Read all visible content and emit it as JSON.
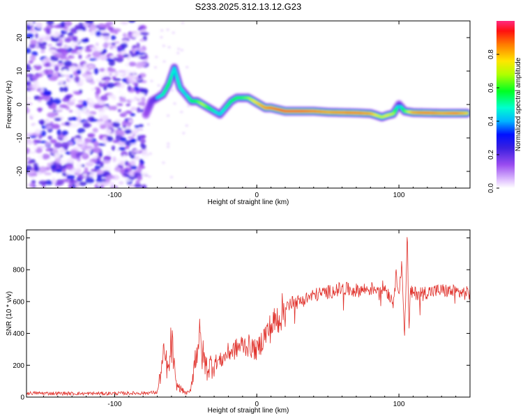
{
  "title": "S233.2025.312.13.12.G23",
  "chart_data": [
    {
      "type": "heatmap",
      "name": "spectrogram",
      "xlabel": "Height of straight line (km)",
      "ylabel": "Frequency (Hz)",
      "xlim": [
        -162,
        150
      ],
      "ylim": [
        -25,
        25
      ],
      "xticks": [
        -100,
        0,
        100
      ],
      "yticks": [
        -20,
        -10,
        0,
        10,
        20
      ],
      "colorbar": {
        "label": "Normalized spectral amplitude",
        "range": [
          0,
          1
        ],
        "ticks": [
          0.0,
          0.2,
          0.4,
          0.6,
          0.8
        ]
      },
      "ridge": {
        "description": "peak frequency trace (Hz) vs height (km)",
        "x": [
          -78,
          -74,
          -70,
          -66,
          -62,
          -58,
          -54,
          -50,
          -46,
          -42,
          -38,
          -34,
          -30,
          -26,
          -22,
          -18,
          -14,
          -10,
          -6,
          -2,
          2,
          6,
          10,
          20,
          30,
          40,
          50,
          60,
          70,
          80,
          84,
          88,
          92,
          96,
          100,
          104,
          110,
          120,
          130,
          140,
          148
        ],
        "y": [
          -3,
          1,
          2,
          3,
          6,
          11,
          5,
          3,
          1,
          1,
          0,
          -1,
          -2,
          -3,
          -1,
          1,
          2,
          2,
          2,
          1,
          0,
          -1,
          -1,
          -2,
          -2,
          -2,
          -2.3,
          -2.4,
          -2.5,
          -2.7,
          -3.2,
          -3.8,
          -3.2,
          -2.8,
          0,
          -2,
          -2.4,
          -2.5,
          -2.6,
          -2.6,
          -2.6
        ],
        "amplitude": [
          0.3,
          0.4,
          0.45,
          0.5,
          0.55,
          0.45,
          0.5,
          0.45,
          0.55,
          0.6,
          0.7,
          0.6,
          0.5,
          0.45,
          0.5,
          0.55,
          0.6,
          0.6,
          0.65,
          0.75,
          0.8,
          0.85,
          0.9,
          0.95,
          0.95,
          0.9,
          0.85,
          0.88,
          0.9,
          0.85,
          0.75,
          0.7,
          0.75,
          0.7,
          0.4,
          0.6,
          0.85,
          0.9,
          0.85,
          0.9,
          0.8
        ]
      },
      "noise_region": {
        "x_range": [
          -162,
          -78
        ],
        "amplitude_range": [
          0.0,
          0.3
        ]
      }
    },
    {
      "type": "line",
      "name": "snr",
      "xlabel": "Height of straight line (km)",
      "ylabel": "SNR (10 * v/v)",
      "xlim": [
        -162,
        150
      ],
      "ylim": [
        0,
        1050
      ],
      "xticks": [
        -100,
        0,
        100
      ],
      "yticks": [
        0,
        200,
        400,
        600,
        800,
        1000
      ],
      "color": "#e0302a",
      "series": [
        {
          "name": "SNR",
          "x": [
            -162,
            -120,
            -80,
            -70,
            -67,
            -65,
            -62,
            -60,
            -57,
            -52,
            -50,
            -47,
            -44,
            -41,
            -38,
            -35,
            -30,
            -25,
            -20,
            -15,
            -10,
            -5,
            0,
            5,
            10,
            15,
            20,
            25,
            30,
            40,
            50,
            60,
            70,
            80,
            90,
            96,
            98,
            100,
            102,
            104,
            106,
            107,
            108,
            110,
            120,
            130,
            140,
            150
          ],
          "y": [
            25,
            22,
            25,
            30,
            180,
            260,
            150,
            360,
            80,
            40,
            25,
            30,
            200,
            380,
            260,
            180,
            220,
            230,
            280,
            300,
            330,
            320,
            290,
            380,
            440,
            500,
            560,
            590,
            600,
            640,
            660,
            680,
            670,
            680,
            690,
            600,
            760,
            680,
            820,
            400,
            1050,
            380,
            660,
            650,
            660,
            670,
            660,
            650
          ]
        }
      ]
    }
  ],
  "colors": {
    "snr_line": "#e0302a",
    "axes": "#000000"
  }
}
